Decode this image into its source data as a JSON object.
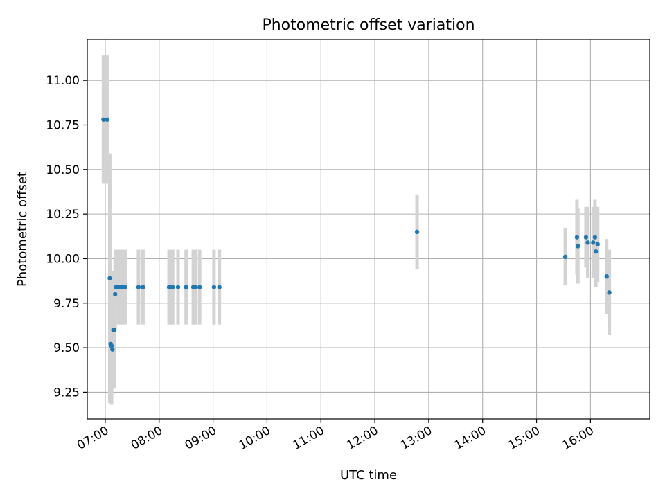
{
  "chart_data": {
    "type": "scatter",
    "title": "Photometric offset variation",
    "xlabel": "UTC time",
    "ylabel": "Photometric offset",
    "x_format": "HH:MM",
    "xlim": [
      "06:40",
      "17:06"
    ],
    "ylim": [
      9.1,
      11.23
    ],
    "x_ticks": [
      "07:00",
      "08:00",
      "09:00",
      "10:00",
      "11:00",
      "12:00",
      "13:00",
      "14:00",
      "15:00",
      "16:00"
    ],
    "y_ticks": [
      9.25,
      9.5,
      9.75,
      10.0,
      10.25,
      10.5,
      10.75,
      11.0
    ],
    "y_tick_labels": [
      "9.25",
      "9.50",
      "9.75",
      "10.00",
      "10.25",
      "10.50",
      "10.75",
      "11.00"
    ],
    "grid": true,
    "marker_color": "#1f77b4",
    "errorbar_color": "#d3d3d3",
    "points": [
      {
        "x": "06:58",
        "y": 10.78,
        "err": 0.36
      },
      {
        "x": "07:02",
        "y": 10.78,
        "err": 0.36
      },
      {
        "x": "07:05",
        "y": 9.89,
        "err": 0.7
      },
      {
        "x": "07:06",
        "y": 9.52,
        "err": 0.33
      },
      {
        "x": "07:07",
        "y": 9.51,
        "err": 0.33
      },
      {
        "x": "07:08",
        "y": 9.49,
        "err": 0.22
      },
      {
        "x": "07:09",
        "y": 9.6,
        "err": 0.33
      },
      {
        "x": "07:10",
        "y": 9.6,
        "err": 0.33
      },
      {
        "x": "07:11",
        "y": 9.8,
        "err": 0.2
      },
      {
        "x": "07:12",
        "y": 9.84,
        "err": 0.21
      },
      {
        "x": "07:14",
        "y": 9.84,
        "err": 0.21
      },
      {
        "x": "07:16",
        "y": 9.84,
        "err": 0.21
      },
      {
        "x": "07:18",
        "y": 9.84,
        "err": 0.21
      },
      {
        "x": "07:20",
        "y": 9.84,
        "err": 0.21
      },
      {
        "x": "07:22",
        "y": 9.84,
        "err": 0.21
      },
      {
        "x": "07:37",
        "y": 9.84,
        "err": 0.21
      },
      {
        "x": "07:42",
        "y": 9.84,
        "err": 0.21
      },
      {
        "x": "08:11",
        "y": 9.84,
        "err": 0.21
      },
      {
        "x": "08:13",
        "y": 9.84,
        "err": 0.21
      },
      {
        "x": "08:15",
        "y": 9.84,
        "err": 0.21
      },
      {
        "x": "08:21",
        "y": 9.84,
        "err": 0.21
      },
      {
        "x": "08:30",
        "y": 9.84,
        "err": 0.21
      },
      {
        "x": "08:38",
        "y": 9.84,
        "err": 0.21
      },
      {
        "x": "08:40",
        "y": 9.84,
        "err": 0.21
      },
      {
        "x": "08:45",
        "y": 9.84,
        "err": 0.21
      },
      {
        "x": "09:01",
        "y": 9.84,
        "err": 0.21
      },
      {
        "x": "09:07",
        "y": 9.84,
        "err": 0.21
      },
      {
        "x": "12:47",
        "y": 10.15,
        "err": 0.21
      },
      {
        "x": "15:32",
        "y": 10.01,
        "err": 0.16
      },
      {
        "x": "15:45",
        "y": 10.12,
        "err": 0.21
      },
      {
        "x": "15:46",
        "y": 10.07,
        "err": 0.21
      },
      {
        "x": "15:55",
        "y": 10.12,
        "err": 0.17
      },
      {
        "x": "15:57",
        "y": 10.09,
        "err": 0.2
      },
      {
        "x": "16:03",
        "y": 10.09,
        "err": 0.2
      },
      {
        "x": "16:05",
        "y": 10.12,
        "err": 0.21
      },
      {
        "x": "16:06",
        "y": 10.04,
        "err": 0.2
      },
      {
        "x": "16:08",
        "y": 10.08,
        "err": 0.21
      },
      {
        "x": "16:18",
        "y": 9.9,
        "err": 0.21
      },
      {
        "x": "16:21",
        "y": 9.81,
        "err": 0.24
      }
    ]
  }
}
